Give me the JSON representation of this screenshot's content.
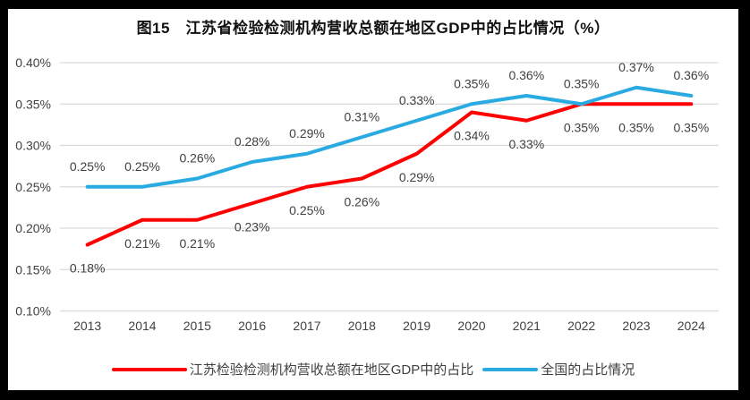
{
  "chart_data": {
    "type": "line",
    "title": "图15　江苏省检验检测机构营收总额在地区GDP中的占比情况（%）",
    "categories": [
      "2013",
      "2014",
      "2015",
      "2016",
      "2017",
      "2018",
      "2019",
      "2020",
      "2021",
      "2022",
      "2023",
      "2024"
    ],
    "series": [
      {
        "name": "江苏检验检测机构营收总额在地区GDP中的占比",
        "color": "#FF0000",
        "values": [
          0.18,
          0.21,
          0.21,
          0.23,
          0.25,
          0.26,
          0.29,
          0.34,
          0.33,
          0.35,
          0.35,
          0.35
        ],
        "labels": [
          "0.18%",
          "0.21%",
          "0.21%",
          "0.23%",
          "0.25%",
          "0.26%",
          "0.29%",
          "0.34%",
          "0.33%",
          "0.35%",
          "0.35%",
          "0.35%"
        ],
        "label_position": "below"
      },
      {
        "name": "全国的占比情况",
        "color": "#29ABE2",
        "values": [
          0.25,
          0.25,
          0.26,
          0.28,
          0.29,
          0.31,
          0.33,
          0.35,
          0.36,
          0.35,
          0.37,
          0.36
        ],
        "labels": [
          "0.25%",
          "0.25%",
          "0.26%",
          "0.28%",
          "0.29%",
          "0.31%",
          "0.33%",
          "0.35%",
          "0.36%",
          "0.35%",
          "0.37%",
          "0.36%"
        ],
        "label_position": "above"
      }
    ],
    "y_axis": {
      "min": 0.1,
      "max": 0.4,
      "step": 0.05,
      "tick_labels": [
        "0.40%",
        "0.35%",
        "0.30%",
        "0.25%",
        "0.20%",
        "0.15%",
        "0.10%"
      ]
    },
    "xlabel": "",
    "ylabel": "",
    "grid": true,
    "legend_position": "bottom",
    "colors": {
      "gridline": "#D9D9D9",
      "axis_text": "#404040",
      "title_text": "#111111"
    }
  }
}
